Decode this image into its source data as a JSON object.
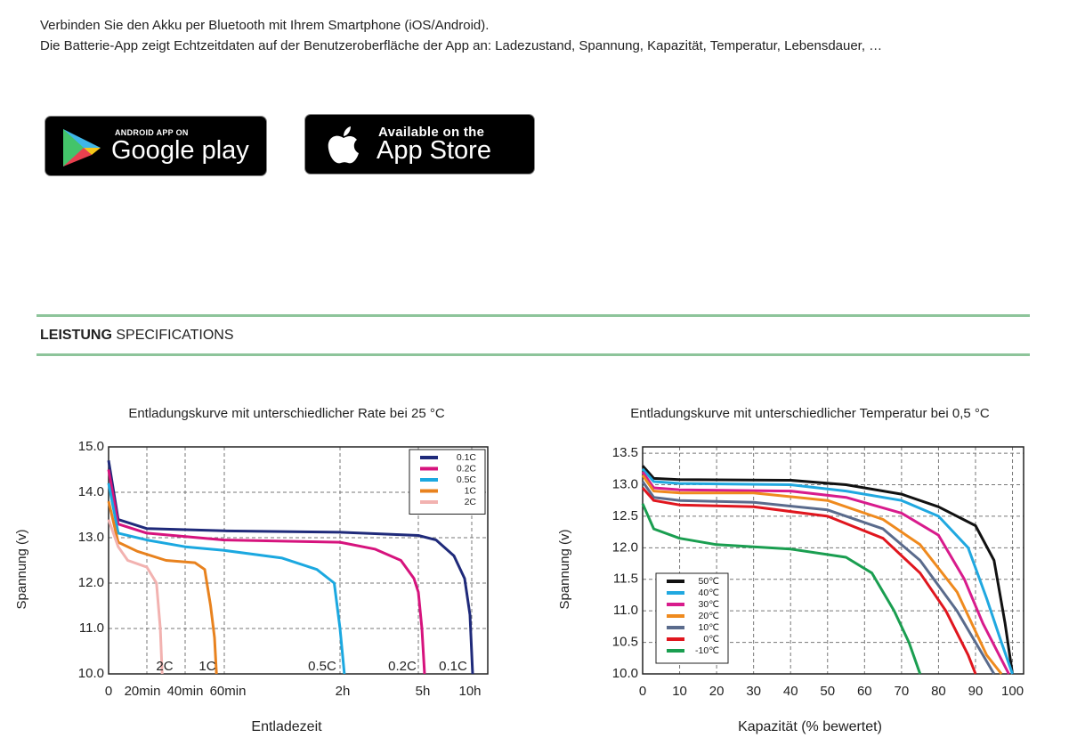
{
  "intro": [
    "Verbinden Sie den Akku per Bluetooth mit Ihrem Smartphone (iOS/Android).",
    "Die Batterie-App zeigt Echtzeitdaten auf der Benutzeroberfläche der App an: Ladezustand, Spannung, Kapazität, Temperatur, Lebensdauer, …"
  ],
  "badges": [
    {
      "small": "ANDROID APP ON",
      "large": "Google play"
    },
    {
      "small": "Available on the",
      "large": "App Store"
    }
  ],
  "section": {
    "bold": "LEISTUNG",
    "rest": "SPECIFICATIONS"
  },
  "chart_data": [
    {
      "type": "line",
      "title": "Entladungskurve mit unterschiedlicher Rate bei 25 °C",
      "xlabel": "Entladezeit",
      "ylabel": "Spannung (v)",
      "ylim": [
        10,
        15
      ],
      "yticks": [
        {
          "value": 10,
          "label": "10.0"
        },
        {
          "value": 11,
          "label": "11.0"
        },
        {
          "value": 12,
          "label": "12.0"
        },
        {
          "value": 13,
          "label": "13.0"
        },
        {
          "value": 14,
          "label": "14.0"
        },
        {
          "value": 15,
          "label": "15.0"
        }
      ],
      "xticks": [
        0,
        {
          "value": 20,
          "label": "20min"
        },
        {
          "value": 40,
          "label": "40min"
        },
        {
          "value": 60,
          "label": "60min"
        },
        {
          "value": 120,
          "label": "2h"
        },
        {
          "value": 300,
          "label": "5h"
        },
        {
          "value": 600,
          "label": "10h"
        }
      ],
      "grid": true,
      "legend": "upper right",
      "series": [
        {
          "name": "0.1C",
          "color": "#1f2a7a",
          "x": [
            0,
            5,
            20,
            60,
            120,
            300,
            400,
            500,
            560,
            590,
            605
          ],
          "values": [
            14.7,
            13.4,
            13.2,
            13.15,
            13.12,
            13.05,
            12.95,
            12.6,
            12.1,
            11.3,
            10.0
          ]
        },
        {
          "name": "0.2C",
          "color": "#d6137d",
          "x": [
            0,
            5,
            20,
            60,
            120,
            200,
            260,
            290,
            300,
            320,
            335
          ],
          "values": [
            14.5,
            13.3,
            13.1,
            12.95,
            12.9,
            12.75,
            12.5,
            12.1,
            11.8,
            11.0,
            10.0
          ]
        },
        {
          "name": "0.5C",
          "color": "#1ba8e0",
          "x": [
            0,
            5,
            20,
            40,
            60,
            90,
            108,
            117,
            120,
            130
          ],
          "values": [
            14.2,
            13.1,
            12.95,
            12.8,
            12.72,
            12.55,
            12.3,
            12.0,
            11.0,
            10.0
          ]
        },
        {
          "name": "1C",
          "color": "#e8821e",
          "x": [
            0,
            5,
            15,
            30,
            45,
            50,
            53,
            55,
            56
          ],
          "values": [
            13.8,
            12.9,
            12.7,
            12.5,
            12.45,
            12.3,
            11.5,
            10.8,
            10.0
          ]
        },
        {
          "name": "2C",
          "color": "#f2b2b0",
          "x": [
            0,
            5,
            10,
            20,
            25,
            27,
            28
          ],
          "values": [
            13.4,
            12.8,
            12.5,
            12.35,
            12.0,
            11.0,
            10.0
          ]
        }
      ]
    },
    {
      "type": "line",
      "title": "Entladungskurve mit unterschiedlicher Temperatur bei 0,5 °C",
      "xlabel": "Kapazität (% bewertet)",
      "ylabel": "Spannung (v)",
      "xlim": [
        0,
        103
      ],
      "ylim": [
        10,
        13.6
      ],
      "xticks": [
        0,
        10,
        20,
        30,
        40,
        50,
        60,
        70,
        80,
        90,
        100
      ],
      "yticks": [
        {
          "value": 10,
          "label": "10.0"
        },
        {
          "value": 10.5,
          "label": "10.5"
        },
        {
          "value": 11,
          "label": "11.0"
        },
        {
          "value": 11.5,
          "label": "11.5"
        },
        {
          "value": 12,
          "label": "12.0"
        },
        {
          "value": 12.5,
          "label": "12.5"
        },
        {
          "value": 13,
          "label": "13.0"
        },
        {
          "value": 13.5,
          "label": "13.5"
        }
      ],
      "grid": true,
      "legend": "lower left",
      "series": [
        {
          "name": "50℃",
          "color": "#111111",
          "x": [
            0,
            3,
            10,
            40,
            55,
            70,
            80,
            90,
            95,
            98,
            100
          ],
          "values": [
            13.3,
            13.1,
            13.08,
            13.07,
            13.0,
            12.85,
            12.65,
            12.35,
            11.8,
            10.8,
            10.0
          ]
        },
        {
          "name": "40℃",
          "color": "#20a8e0",
          "x": [
            0,
            3,
            10,
            40,
            55,
            70,
            80,
            88,
            93,
            97,
            100
          ],
          "values": [
            13.25,
            13.05,
            13.02,
            13.0,
            12.9,
            12.75,
            12.5,
            12.0,
            11.2,
            10.5,
            10.0
          ]
        },
        {
          "name": "30℃",
          "color": "#d81b8c",
          "x": [
            0,
            3,
            10,
            40,
            55,
            70,
            80,
            87,
            92,
            99
          ],
          "values": [
            13.2,
            12.95,
            12.92,
            12.9,
            12.8,
            12.55,
            12.2,
            11.5,
            10.8,
            10.0
          ]
        },
        {
          "name": "20℃",
          "color": "#ef8a1e",
          "x": [
            0,
            3,
            10,
            30,
            50,
            65,
            75,
            85,
            93,
            97
          ],
          "values": [
            13.15,
            12.9,
            12.87,
            12.87,
            12.75,
            12.45,
            12.05,
            11.3,
            10.3,
            10.0
          ]
        },
        {
          "name": "10℃",
          "color": "#5a6b8c",
          "x": [
            0,
            3,
            10,
            30,
            50,
            65,
            75,
            85,
            92,
            95
          ],
          "values": [
            13.05,
            12.8,
            12.75,
            12.72,
            12.6,
            12.3,
            11.8,
            11.0,
            10.3,
            10.0
          ]
        },
        {
          "name": "0℃",
          "color": "#e0161e",
          "x": [
            0,
            3,
            10,
            30,
            50,
            65,
            75,
            82,
            88,
            90
          ],
          "values": [
            12.95,
            12.75,
            12.68,
            12.65,
            12.5,
            12.15,
            11.6,
            11.0,
            10.3,
            10.0
          ]
        },
        {
          "name": "-10℃",
          "color": "#1a9e50",
          "x": [
            0,
            3,
            10,
            20,
            40,
            55,
            62,
            68,
            72,
            75
          ],
          "values": [
            12.7,
            12.3,
            12.15,
            12.05,
            11.98,
            11.85,
            11.6,
            11.0,
            10.5,
            10.0
          ]
        }
      ]
    }
  ]
}
